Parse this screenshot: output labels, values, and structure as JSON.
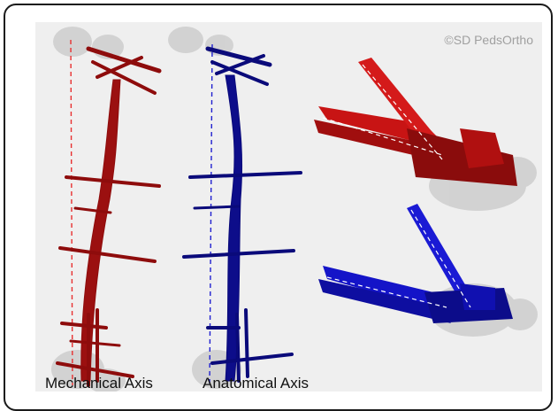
{
  "watermark": "©SD PedsOrtho",
  "captions": {
    "mechanical": "Mechanical Axis",
    "anatomical": "Anatomical Axis"
  },
  "colors": {
    "mechanical_model": "#9b1010",
    "anatomical_model": "#0d0d8a",
    "red_frame": "#d01010",
    "blue_frame": "#1a1ad0",
    "bone": "#cfcfcf",
    "background": "#efefef"
  }
}
